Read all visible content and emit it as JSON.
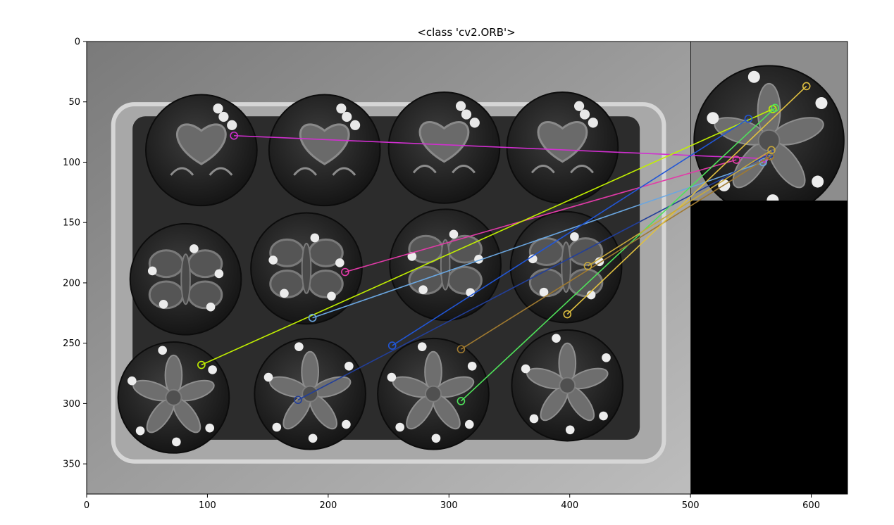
{
  "chart_data": {
    "type": "image-keypoint-matches",
    "title": "<class 'cv2.ORB'>",
    "xlabel": "",
    "ylabel": "",
    "xlim": [
      0,
      630
    ],
    "ylim": [
      375,
      0
    ],
    "x_ticks": [
      0,
      100,
      200,
      300,
      400,
      500,
      600
    ],
    "y_ticks": [
      0,
      50,
      100,
      150,
      200,
      250,
      300,
      350
    ],
    "scene_image": {
      "description_label": "cupcakes-tray",
      "x_range": [
        0,
        500
      ],
      "y_range": [
        0,
        375
      ],
      "cupcakes": [
        {
          "cx": 95,
          "cy": 90,
          "motif": "heart"
        },
        {
          "cx": 197,
          "cy": 90,
          "motif": "heart"
        },
        {
          "cx": 296,
          "cy": 88,
          "motif": "heart"
        },
        {
          "cx": 394,
          "cy": 88,
          "motif": "heart"
        },
        {
          "cx": 82,
          "cy": 197,
          "motif": "butterfly"
        },
        {
          "cx": 182,
          "cy": 188,
          "motif": "butterfly"
        },
        {
          "cx": 297,
          "cy": 185,
          "motif": "butterfly"
        },
        {
          "cx": 397,
          "cy": 187,
          "motif": "butterfly"
        },
        {
          "cx": 72,
          "cy": 295,
          "motif": "flower"
        },
        {
          "cx": 185,
          "cy": 292,
          "motif": "flower"
        },
        {
          "cx": 287,
          "cy": 292,
          "motif": "flower"
        },
        {
          "cx": 398,
          "cy": 285,
          "motif": "flower"
        }
      ]
    },
    "query_image": {
      "description_label": "single-flower-cupcake",
      "x_range": [
        500,
        630
      ],
      "y_range": [
        0,
        132
      ],
      "cupcake": {
        "cx": 565,
        "cy": 82,
        "motif": "flower"
      }
    },
    "matches": [
      {
        "x1": 122,
        "y1": 78,
        "x2": 561,
        "y2": 97,
        "color": "#d12fd0"
      },
      {
        "x1": 214,
        "y1": 191,
        "x2": 538,
        "y2": 98,
        "color": "#e23aa8"
      },
      {
        "x1": 95,
        "y1": 268,
        "x2": 568,
        "y2": 56,
        "color": "#c2f000"
      },
      {
        "x1": 187,
        "y1": 229,
        "x2": 560,
        "y2": 100,
        "color": "#6aa6e0"
      },
      {
        "x1": 253,
        "y1": 252,
        "x2": 548,
        "y2": 64,
        "color": "#2156d6"
      },
      {
        "x1": 175,
        "y1": 297,
        "x2": 566,
        "y2": 93,
        "color": "#223f9a"
      },
      {
        "x1": 310,
        "y1": 298,
        "x2": 570,
        "y2": 55,
        "color": "#4fe35a"
      },
      {
        "x1": 310,
        "y1": 255,
        "x2": 566,
        "y2": 95,
        "color": "#a07a30"
      },
      {
        "x1": 398,
        "y1": 226,
        "x2": 596,
        "y2": 37,
        "color": "#e0c040"
      },
      {
        "x1": 415,
        "y1": 186,
        "x2": 567,
        "y2": 90,
        "color": "#c8a93a"
      }
    ]
  }
}
